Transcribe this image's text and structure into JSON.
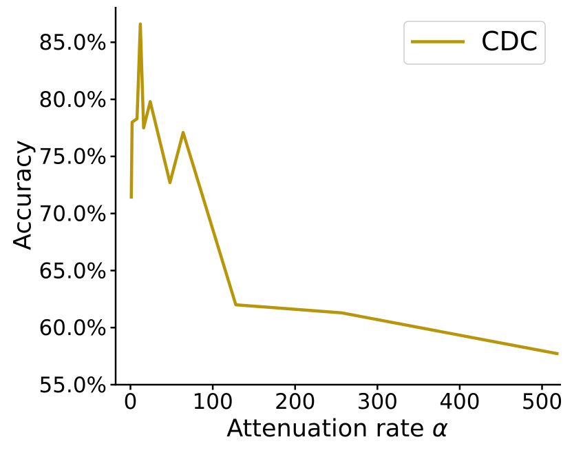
{
  "figure": {
    "background": "#ffffff",
    "axis_color": "#000000"
  },
  "chart_data": {
    "type": "line",
    "title": "",
    "xlabel": "Attenuation rate α",
    "xlabel_prefix": "Attenuation rate ",
    "xlabel_symbol": "α",
    "ylabel": "Accuracy",
    "xlim": [
      -18,
      523
    ],
    "ylim": [
      55,
      88.1
    ],
    "xticks": [
      0,
      100,
      200,
      300,
      400,
      500
    ],
    "yticks": [
      55,
      60,
      65,
      70,
      75,
      80,
      85
    ],
    "ytick_labels": [
      "55.0%",
      "60.0%",
      "65.0%",
      "70.0%",
      "75.0%",
      "80.0%",
      "85.0%"
    ],
    "grid": false,
    "legend": {
      "position": "upper right",
      "entries": [
        {
          "label": "CDC",
          "color": "#b8960c"
        }
      ]
    },
    "series": [
      {
        "name": "CDC",
        "color": "#b8960c",
        "x": [
          1,
          2,
          4,
          8,
          12,
          16,
          24,
          48,
          64,
          128,
          256,
          520
        ],
        "y": [
          71.3,
          78.0,
          78.1,
          78.3,
          86.6,
          77.5,
          79.8,
          72.7,
          77.1,
          62.0,
          61.3,
          57.7
        ]
      }
    ]
  }
}
